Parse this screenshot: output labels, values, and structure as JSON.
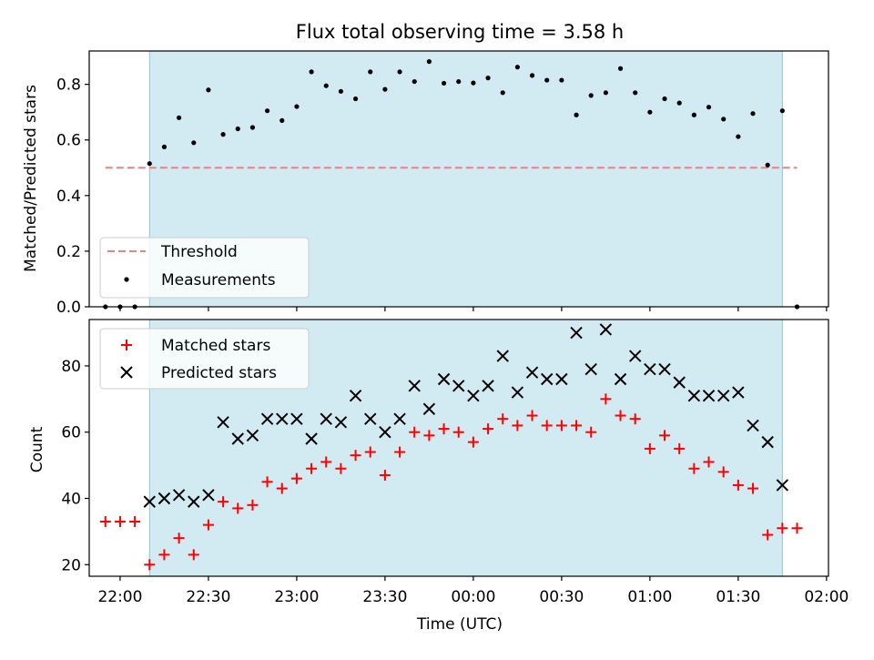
{
  "chart_data": [
    {
      "panel": "top",
      "type": "scatter",
      "title": "Flux total observing time = 3.58 h",
      "ylabel": "Matched/Predicted stars",
      "xlabel": "",
      "xlim": [
        "21:49:30",
        "02:00:40"
      ],
      "ylim": [
        0.0,
        0.92
      ],
      "yticks": [
        0.0,
        0.2,
        0.4,
        0.6,
        0.8
      ],
      "ytick_labels": [
        "0.0",
        "0.2",
        "0.4",
        "0.6",
        "0.8"
      ],
      "shaded_span": [
        "22:10",
        "01:45"
      ],
      "legend": {
        "placement": "lower-left",
        "entries": [
          {
            "label": "Threshold",
            "marker": "dashed-line",
            "color": "#f08080"
          },
          {
            "label": "Measurements",
            "marker": "dot",
            "color": "#000000"
          }
        ]
      },
      "series": [
        {
          "name": "Threshold",
          "kind": "line",
          "style": "dashed",
          "color": "#f08080",
          "x": [
            "21:55",
            "01:50"
          ],
          "y": [
            0.5,
            0.5
          ]
        },
        {
          "name": "Measurements",
          "kind": "scatter",
          "marker": "dot",
          "color": "#000000",
          "x": [
            "21:55",
            "22:00",
            "22:05",
            "22:10",
            "22:15",
            "22:20",
            "22:25",
            "22:30",
            "22:35",
            "22:40",
            "22:45",
            "22:50",
            "22:55",
            "23:00",
            "23:05",
            "23:10",
            "23:15",
            "23:20",
            "23:25",
            "23:30",
            "23:35",
            "23:40",
            "23:45",
            "23:50",
            "23:55",
            "00:00",
            "00:05",
            "00:10",
            "00:15",
            "00:20",
            "00:25",
            "00:30",
            "00:35",
            "00:40",
            "00:45",
            "00:50",
            "00:55",
            "01:00",
            "01:05",
            "01:10",
            "01:15",
            "01:20",
            "01:25",
            "01:30",
            "01:35",
            "01:40",
            "01:45",
            "01:50"
          ],
          "y": [
            0.0,
            0.0,
            0.0,
            0.515,
            0.575,
            0.68,
            0.59,
            0.78,
            0.62,
            0.64,
            0.645,
            0.705,
            0.67,
            0.72,
            0.845,
            0.795,
            0.775,
            0.748,
            0.845,
            0.782,
            0.845,
            0.81,
            0.882,
            0.804,
            0.81,
            0.805,
            0.823,
            0.77,
            0.862,
            0.832,
            0.815,
            0.815,
            0.69,
            0.76,
            0.77,
            0.857,
            0.77,
            0.7,
            0.748,
            0.733,
            0.69,
            0.718,
            0.675,
            0.612,
            0.695,
            0.51,
            0.705,
            0.0
          ]
        }
      ]
    },
    {
      "panel": "bottom",
      "type": "scatter",
      "title": "",
      "ylabel": "Count",
      "xlabel": "Time (UTC)",
      "xlim": [
        "21:49:30",
        "02:00:40"
      ],
      "ylim": [
        16.5,
        94
      ],
      "yticks": [
        20,
        40,
        60,
        80
      ],
      "ytick_labels": [
        "20",
        "40",
        "60",
        "80"
      ],
      "xticks": [
        "22:00",
        "22:30",
        "23:00",
        "23:30",
        "00:00",
        "00:30",
        "01:00",
        "01:30",
        "02:00"
      ],
      "xtick_labels": [
        "22:00",
        "22:30",
        "23:00",
        "23:30",
        "00:00",
        "00:30",
        "01:00",
        "01:30",
        "02:00"
      ],
      "shaded_span": [
        "22:10",
        "01:45"
      ],
      "legend": {
        "placement": "upper-left",
        "entries": [
          {
            "label": "Matched stars",
            "marker": "plus",
            "color": "#ff0000"
          },
          {
            "label": "Predicted stars",
            "marker": "x",
            "color": "#000000"
          }
        ]
      },
      "series": [
        {
          "name": "Matched stars",
          "kind": "scatter",
          "marker": "plus",
          "color": "#ff0000",
          "x": [
            "21:55",
            "22:00",
            "22:05",
            "22:10",
            "22:15",
            "22:20",
            "22:25",
            "22:30",
            "22:35",
            "22:40",
            "22:45",
            "22:50",
            "22:55",
            "23:00",
            "23:05",
            "23:10",
            "23:15",
            "23:20",
            "23:25",
            "23:30",
            "23:35",
            "23:40",
            "23:45",
            "23:50",
            "23:55",
            "00:00",
            "00:05",
            "00:10",
            "00:15",
            "00:20",
            "00:25",
            "00:30",
            "00:35",
            "00:40",
            "00:45",
            "00:50",
            "00:55",
            "01:00",
            "01:05",
            "01:10",
            "01:15",
            "01:20",
            "01:25",
            "01:30",
            "01:35",
            "01:40",
            "01:45",
            "01:50"
          ],
          "y": [
            33,
            33,
            33,
            20,
            23,
            28,
            23,
            32,
            39,
            37,
            38,
            45,
            43,
            46,
            49,
            51,
            49,
            53,
            54,
            47,
            54,
            60,
            59,
            61,
            60,
            57,
            61,
            64,
            62,
            65,
            62,
            62,
            62,
            60,
            70,
            65,
            64,
            55,
            59,
            55,
            49,
            51,
            48,
            44,
            43,
            29,
            31,
            31
          ]
        },
        {
          "name": "Predicted stars",
          "kind": "scatter",
          "marker": "x",
          "color": "#000000",
          "x": [
            "22:10",
            "22:15",
            "22:20",
            "22:25",
            "22:30",
            "22:35",
            "22:40",
            "22:45",
            "22:50",
            "22:55",
            "23:00",
            "23:05",
            "23:10",
            "23:15",
            "23:20",
            "23:25",
            "23:30",
            "23:35",
            "23:40",
            "23:45",
            "23:50",
            "23:55",
            "00:00",
            "00:05",
            "00:10",
            "00:15",
            "00:20",
            "00:25",
            "00:30",
            "00:35",
            "00:40",
            "00:45",
            "00:50",
            "00:55",
            "01:00",
            "01:05",
            "01:10",
            "01:15",
            "01:20",
            "01:25",
            "01:30",
            "01:35",
            "01:40",
            "01:45"
          ],
          "y": [
            39,
            40,
            41,
            39,
            41,
            63,
            58,
            59,
            64,
            64,
            64,
            58,
            64,
            63,
            71,
            64,
            60,
            64,
            74,
            67,
            76,
            74,
            71,
            74,
            83,
            72,
            78,
            76,
            76,
            90,
            79,
            91,
            76,
            83,
            79,
            79,
            75,
            71,
            71,
            71,
            72,
            62,
            57,
            44
          ]
        }
      ]
    }
  ],
  "colors": {
    "shade": "#add8e6",
    "threshold": "#f08080",
    "matched": "#ff0000",
    "predicted": "#000000",
    "measurement": "#000000"
  }
}
